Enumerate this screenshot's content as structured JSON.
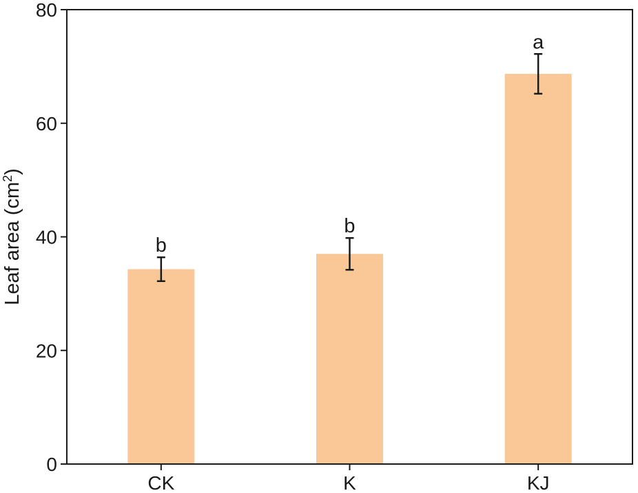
{
  "chart_data": {
    "type": "bar",
    "categories": [
      "CK",
      "K",
      "KJ"
    ],
    "values": [
      34.3,
      37.0,
      68.7
    ],
    "errors": [
      2.1,
      2.8,
      3.5
    ],
    "significance": [
      "b",
      "b",
      "a"
    ],
    "title": "",
    "xlabel": "",
    "ylabel": "Leaf area (cm",
    "ylabel_sup": "2",
    "ylabel_close": ")",
    "ylim": [
      0,
      80
    ],
    "yticks": [
      "0",
      "20",
      "40",
      "60",
      "80"
    ],
    "grid": false,
    "bar_color": "#fac896",
    "error_color": "#1a1a1a"
  }
}
